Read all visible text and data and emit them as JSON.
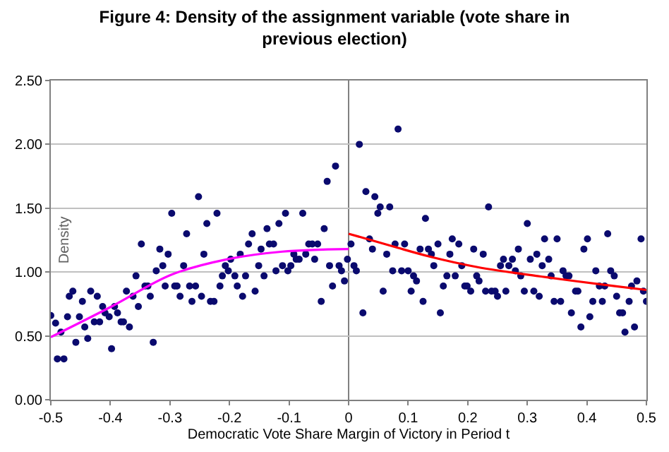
{
  "chart_data": {
    "type": "scatter",
    "title": "Figure 4: Density of the assignment variable (vote share in previous election)",
    "xlabel": "Democratic Vote Share Margin of Victory in Period t",
    "ylabel": "Density",
    "xlim": [
      -0.5,
      0.5
    ],
    "xticks": [
      -0.5,
      -0.4,
      -0.3,
      -0.2,
      -0.1,
      0,
      0.1,
      0.2,
      0.3,
      0.4,
      0.5
    ],
    "ylim": [
      0,
      2.5
    ],
    "yticks": [
      {
        "value": 0,
        "label": "0.00"
      },
      {
        "value": 0.5,
        "label": "0.50"
      },
      {
        "value": 1,
        "label": "1.00"
      },
      {
        "value": 1.5,
        "label": "1.50"
      },
      {
        "value": 2,
        "label": "2.00"
      },
      {
        "value": 2.5,
        "label": "2.50"
      }
    ],
    "grid": "y",
    "marker": "circle",
    "ref_lines": [
      {
        "axis": "x",
        "value": 0,
        "color": "#808080"
      }
    ],
    "series": [
      {
        "color": "#0a0a6e",
        "x": [
          -0.5,
          -0.492,
          -0.489,
          -0.478,
          -0.483,
          -0.472,
          -0.469,
          -0.463,
          -0.458,
          -0.452,
          -0.447,
          -0.443,
          -0.438,
          -0.433,
          -0.427,
          -0.422,
          -0.418,
          -0.413,
          -0.409,
          -0.402,
          -0.398,
          -0.393,
          -0.388,
          -0.382,
          -0.378,
          -0.373,
          -0.368,
          -0.362,
          -0.357,
          -0.353,
          -0.348,
          -0.342,
          -0.337,
          -0.333,
          -0.328,
          -0.323,
          -0.317,
          -0.312,
          -0.308,
          -0.303,
          -0.297,
          -0.292,
          -0.288,
          -0.283,
          -0.277,
          -0.272,
          -0.267,
          -0.263,
          -0.257,
          -0.252,
          -0.247,
          -0.243,
          -0.238,
          -0.232,
          -0.226,
          -0.221,
          -0.216,
          -0.212,
          -0.207,
          -0.202,
          -0.198,
          -0.191,
          -0.187,
          -0.182,
          -0.178,
          -0.173,
          -0.168,
          -0.162,
          -0.157,
          -0.151,
          -0.147,
          -0.142,
          -0.137,
          -0.133,
          -0.126,
          -0.122,
          -0.117,
          -0.111,
          -0.106,
          -0.102,
          -0.097,
          -0.092,
          -0.088,
          -0.083,
          -0.077,
          -0.072,
          -0.067,
          -0.061,
          -0.057,
          -0.052,
          -0.046,
          -0.041,
          -0.036,
          -0.032,
          -0.027,
          -0.022,
          -0.016,
          -0.012,
          -0.007,
          -0.002,
          0.004,
          0.009,
          0.013,
          0.018,
          0.024,
          0.029,
          0.035,
          0.04,
          0.044,
          0.049,
          0.053,
          0.058,
          0.064,
          0.069,
          0.074,
          0.078,
          0.083,
          0.089,
          0.094,
          0.1,
          0.105,
          0.109,
          0.114,
          0.12,
          0.125,
          0.129,
          0.134,
          0.139,
          0.143,
          0.15,
          0.154,
          0.159,
          0.165,
          0.17,
          0.174,
          0.179,
          0.185,
          0.19,
          0.195,
          0.199,
          0.205,
          0.21,
          0.215,
          0.219,
          0.226,
          0.23,
          0.235,
          0.24,
          0.246,
          0.25,
          0.255,
          0.26,
          0.264,
          0.269,
          0.275,
          0.28,
          0.285,
          0.289,
          0.295,
          0.3,
          0.305,
          0.311,
          0.316,
          0.32,
          0.325,
          0.329,
          0.336,
          0.34,
          0.345,
          0.35,
          0.356,
          0.36,
          0.365,
          0.37,
          0.374,
          0.381,
          0.385,
          0.39,
          0.395,
          0.401,
          0.405,
          0.41,
          0.415,
          0.421,
          0.426,
          0.43,
          0.435,
          0.44,
          0.446,
          0.45,
          0.455,
          0.46,
          0.464,
          0.471,
          0.475,
          0.48,
          0.484,
          0.491,
          0.495,
          0.5
        ],
        "values": [
          0.66,
          0.6,
          0.32,
          0.32,
          0.53,
          0.65,
          0.81,
          0.85,
          0.45,
          0.65,
          0.77,
          0.57,
          0.48,
          0.85,
          0.61,
          0.81,
          0.61,
          0.73,
          0.68,
          0.65,
          0.4,
          0.73,
          0.68,
          0.61,
          0.61,
          0.85,
          0.57,
          0.81,
          0.97,
          0.73,
          1.22,
          0.89,
          0.89,
          0.81,
          0.45,
          1.01,
          1.18,
          1.05,
          0.89,
          1.14,
          1.46,
          0.89,
          0.89,
          0.81,
          1.05,
          1.3,
          0.89,
          0.77,
          0.89,
          1.59,
          0.81,
          1.14,
          1.38,
          0.77,
          0.77,
          1.46,
          0.89,
          0.97,
          1.05,
          1.01,
          1.1,
          0.97,
          0.89,
          1.14,
          0.81,
          0.97,
          1.22,
          1.3,
          0.85,
          1.05,
          1.18,
          0.97,
          1.34,
          1.22,
          1.22,
          1.01,
          1.38,
          1.05,
          1.46,
          1.01,
          1.05,
          1.14,
          1.1,
          1.1,
          1.46,
          1.14,
          1.22,
          1.22,
          1.1,
          1.22,
          0.77,
          1.34,
          1.71,
          1.05,
          0.89,
          1.83,
          1.05,
          1.01,
          0.93,
          1.1,
          1.22,
          1.05,
          1.01,
          2.0,
          0.68,
          1.63,
          1.26,
          1.18,
          1.59,
          1.46,
          1.51,
          0.85,
          1.14,
          1.51,
          1.01,
          1.22,
          2.12,
          1.01,
          1.22,
          1.01,
          0.85,
          0.97,
          0.93,
          1.18,
          0.77,
          1.42,
          1.18,
          1.14,
          1.05,
          1.22,
          0.68,
          0.89,
          0.97,
          1.14,
          1.26,
          0.97,
          1.22,
          1.05,
          0.89,
          0.89,
          0.85,
          1.18,
          0.97,
          0.93,
          1.14,
          0.85,
          1.51,
          0.85,
          0.85,
          0.81,
          1.05,
          1.1,
          0.85,
          1.05,
          1.1,
          1.01,
          1.18,
          0.97,
          0.85,
          1.38,
          1.1,
          0.85,
          1.14,
          0.81,
          1.05,
          1.26,
          1.1,
          0.97,
          0.77,
          1.26,
          0.77,
          1.01,
          0.97,
          0.97,
          0.68,
          0.85,
          0.85,
          0.57,
          1.18,
          1.26,
          0.65,
          0.77,
          1.01,
          0.89,
          0.77,
          0.89,
          1.3,
          1.01,
          0.97,
          0.81,
          0.68,
          0.68,
          0.53,
          0.77,
          0.89,
          0.57,
          0.93,
          1.26,
          0.85,
          0.77
        ]
      },
      {
        "type": "line",
        "color": "#ff00ff",
        "marker": "none",
        "x": [
          -0.5,
          -0.398,
          -0.297,
          -0.204,
          -0.111,
          0
        ],
        "values": [
          0.49,
          0.73,
          0.98,
          1.1,
          1.16,
          1.18
        ]
      },
      {
        "type": "line",
        "color": "#ff0000",
        "marker": "none",
        "x": [
          0,
          0.075,
          0.137,
          0.215,
          0.331,
          0.447,
          0.5
        ],
        "values": [
          1.3,
          1.2,
          1.12,
          1.04,
          0.96,
          0.89,
          0.86
        ]
      }
    ]
  }
}
